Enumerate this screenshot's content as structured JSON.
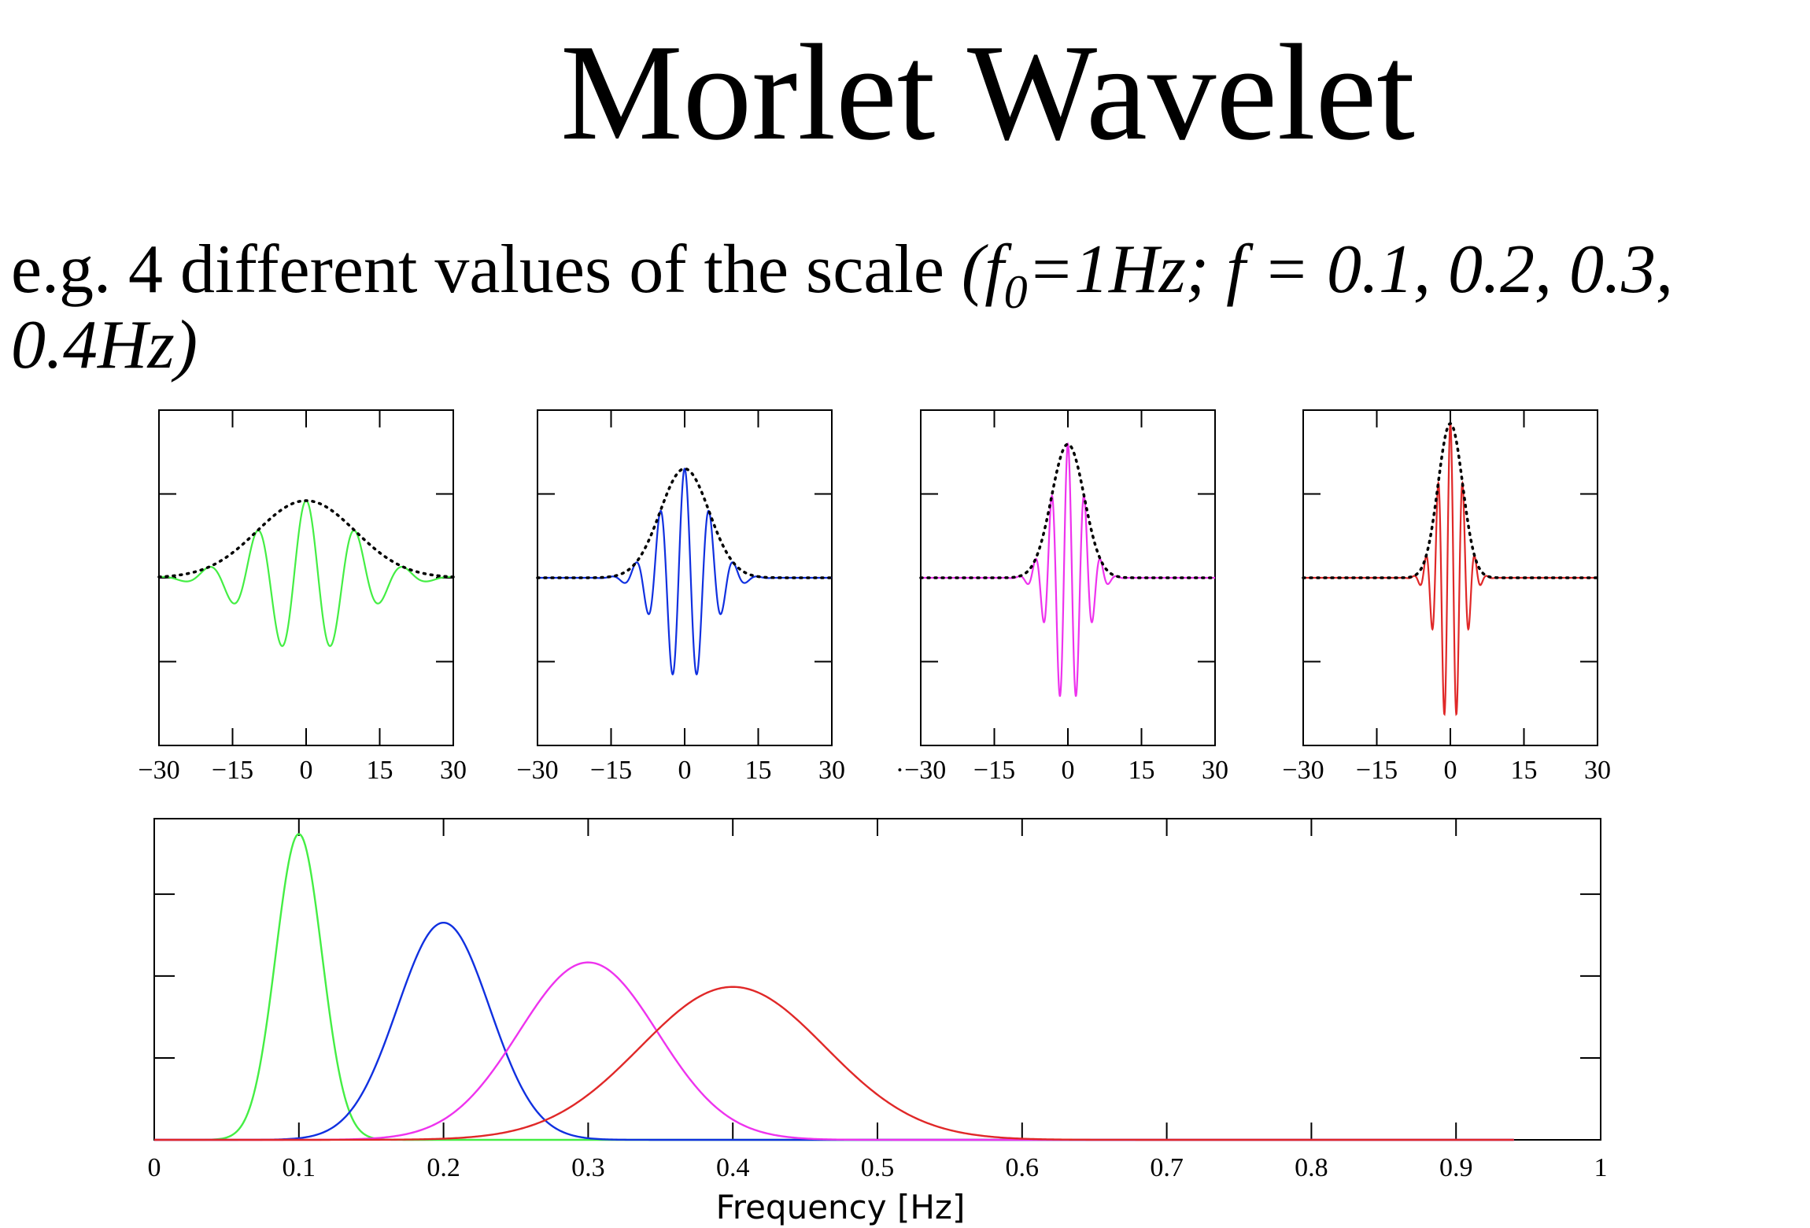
{
  "slide": {
    "title": "Morlet Wavelet",
    "subtitle_prefix": "e.g. 4 different values of the scale ",
    "subtitle_italic_1": "(f",
    "subtitle_sub": "0",
    "subtitle_italic_2": "=1Hz; f = 0.1, 0.2, 0.3, 0.4Hz)"
  },
  "chart_data": [
    {
      "type": "line",
      "panel": "time-domain",
      "f": 0.1,
      "f0": 1,
      "envelope_sigma": 10,
      "x_range": [
        -30,
        30
      ],
      "x_ticks": [
        -30,
        -15,
        0,
        15,
        30
      ],
      "x_tick_labels": [
        "−30",
        "−15",
        "0",
        "15",
        "30"
      ],
      "y_amplitude": 0.5,
      "series_color": "#44ee44",
      "envelope_color": "#000000",
      "envelope_style": "dotted"
    },
    {
      "type": "line",
      "panel": "time-domain",
      "f": 0.2,
      "f0": 1,
      "envelope_sigma": 5,
      "x_range": [
        -30,
        30
      ],
      "x_ticks": [
        -30,
        -15,
        0,
        15,
        30
      ],
      "x_tick_labels": [
        "−30",
        "−15",
        "0",
        "15",
        "30"
      ],
      "y_amplitude": 0.707,
      "series_color": "#1030e0",
      "envelope_color": "#000000",
      "envelope_style": "dotted"
    },
    {
      "type": "line",
      "panel": "time-domain",
      "f": 0.3,
      "f0": 1,
      "envelope_sigma": 3.33,
      "x_range": [
        -30,
        30
      ],
      "x_ticks": [
        -30,
        -15,
        0,
        15,
        30
      ],
      "x_tick_labels": [
        "·−30",
        "−15",
        "0",
        "15",
        "30"
      ],
      "y_amplitude": 0.866,
      "series_color": "#ee33ee",
      "envelope_color": "#000000",
      "envelope_style": "dotted"
    },
    {
      "type": "line",
      "panel": "time-domain",
      "f": 0.4,
      "f0": 1,
      "envelope_sigma": 2.5,
      "x_range": [
        -30,
        30
      ],
      "x_ticks": [
        -30,
        -15,
        0,
        15,
        30
      ],
      "x_tick_labels": [
        "−30",
        "−15",
        "0",
        "15",
        "30"
      ],
      "y_amplitude": 1.0,
      "series_color": "#e02828",
      "envelope_color": "#000000",
      "envelope_style": "dotted"
    },
    {
      "type": "line",
      "panel": "frequency-domain",
      "xlabel": "Frequency [Hz]",
      "x_range": [
        0,
        1
      ],
      "x_ticks": [
        0,
        0.1,
        0.2,
        0.3,
        0.4,
        0.5,
        0.6,
        0.7,
        0.8,
        0.9,
        1
      ],
      "x_tick_labels": [
        "0",
        "0.1",
        "0.2",
        "0.3",
        "0.4",
        "0.5",
        "0.6",
        "0.7",
        "0.8",
        "0.9",
        "1"
      ],
      "y_range": [
        0,
        1.05
      ],
      "series": [
        {
          "center": 0.1,
          "peak": 1.0,
          "sigma": 0.016,
          "color": "#44ee44"
        },
        {
          "center": 0.2,
          "peak": 0.71,
          "sigma": 0.032,
          "color": "#1030e0"
        },
        {
          "center": 0.3,
          "peak": 0.58,
          "sigma": 0.048,
          "color": "#ee33ee"
        },
        {
          "center": 0.4,
          "peak": 0.5,
          "sigma": 0.064,
          "color": "#e02828"
        }
      ]
    }
  ]
}
